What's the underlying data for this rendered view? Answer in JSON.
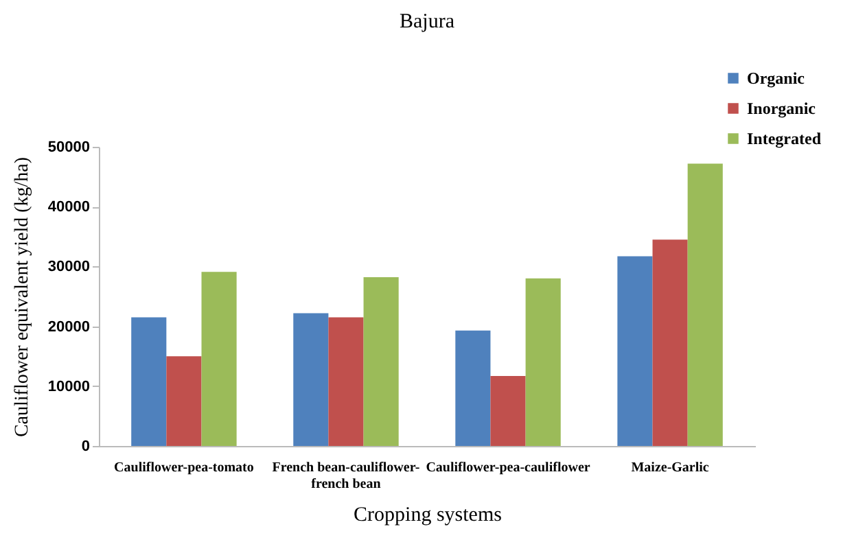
{
  "chart_data": {
    "type": "bar",
    "title": "Bajura",
    "xlabel": "Cropping systems",
    "ylabel": "Cauliflower equivalent yield (kg/ha)",
    "categories": [
      "Cauliflower-pea-tomato",
      "French bean-cauliflower-french bean",
      "Cauliflower-pea-cauliflower",
      "Maize-Garlic"
    ],
    "series": [
      {
        "name": "Organic",
        "color": "#4f81bd",
        "values": [
          21500,
          22200,
          19300,
          31700
        ]
      },
      {
        "name": "Inorganic",
        "color": "#c0504d",
        "values": [
          15000,
          21500,
          11700,
          34500
        ]
      },
      {
        "name": "Integrated",
        "color": "#9bbb59",
        "values": [
          29100,
          28200,
          28000,
          47200
        ]
      }
    ],
    "ylim": [
      0,
      50000
    ],
    "yticks": [
      0,
      10000,
      20000,
      30000,
      40000,
      50000
    ],
    "grid": false,
    "legend": "top right"
  }
}
